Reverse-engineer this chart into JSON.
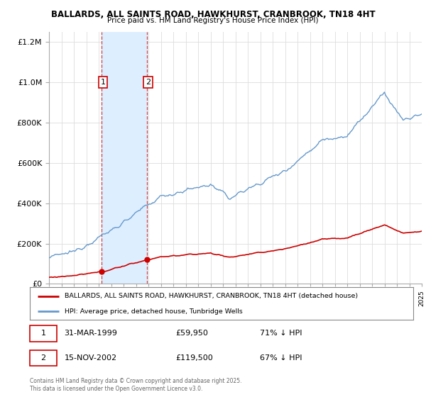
{
  "title_line1": "BALLARDS, ALL SAINTS ROAD, HAWKHURST, CRANBROOK, TN18 4HT",
  "title_line2": "Price paid vs. HM Land Registry's House Price Index (HPI)",
  "hpi_color": "#6699cc",
  "price_color": "#cc0000",
  "shaded_color": "#ddeeff",
  "sale1_date_num": 1999.25,
  "sale2_date_num": 2002.88,
  "sale1_price": 59950,
  "sale2_price": 119500,
  "sale1_date_str": "31-MAR-1999",
  "sale2_date_str": "15-NOV-2002",
  "sale1_hpi_pct": "71% ↓ HPI",
  "sale2_hpi_pct": "67% ↓ HPI",
  "legend_red": "BALLARDS, ALL SAINTS ROAD, HAWKHURST, CRANBROOK, TN18 4HT (detached house)",
  "legend_blue": "HPI: Average price, detached house, Tunbridge Wells",
  "footnote": "Contains HM Land Registry data © Crown copyright and database right 2025.\nThis data is licensed under the Open Government Licence v3.0.",
  "ylim_max": 1250000,
  "xmin": 1995,
  "xmax": 2025
}
